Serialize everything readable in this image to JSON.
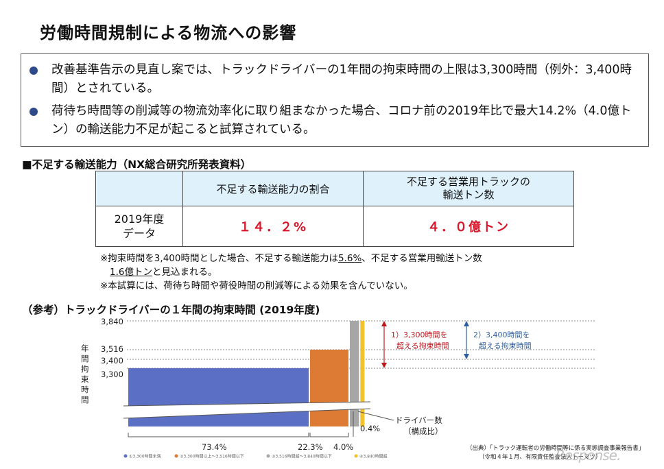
{
  "page_title": "労働時間規制による物流への影響",
  "bullets": [
    "改善基準告示の見直し案では、トラックドライバーの1年間の拘束時間の上限は3,300時間（例外：3,400時間）とされている。",
    "荷待ち時間等の削減等の物流効率化に取り組まなかった場合、コロナ前の2019年比で最大14.2%（4.0億トン）の輸送能力不足が起こると試算されている。"
  ],
  "table_section_title": "■不足する輸送能力（NX総合研究所発表資料）",
  "table": {
    "col1_header": "不足する輸送能力の割合",
    "col2_header_line1": "不足する営業用トラックの",
    "col2_header_line2": "輸送トン数",
    "row_label_line1": "2019年度",
    "row_label_line2": "データ",
    "ratio": "１４．２%",
    "tons": "４．０億トン"
  },
  "notes": {
    "n1_a": "※拘束時間を3,400時間とした場合、不足する輸送能力は",
    "n1_u1": "5.6%",
    "n1_b": "、不足する営業用輸送トン数",
    "n1_u2": "1.6億トン",
    "n1_c": "と見込まれる。",
    "n2": "※本試算には、荷待ち時間や荷役時間の削減等による効果を含んでいない。"
  },
  "chart_section_title": "（参考）トラックドライバーの１年間の拘束時間 (2019年度)",
  "chart_data": {
    "type": "bar",
    "title": "（参考）トラックドライバーの１年間の拘束時間 (2019年度)",
    "ylabel": "年間拘束時間",
    "xlabel": "ドライバー数（構成比）",
    "ytick_labels": [
      "3,840",
      "3,516",
      "3,400",
      "3,300"
    ],
    "yticks": [
      3840,
      3516,
      3400,
      3300
    ],
    "bars": [
      {
        "label": "①3,300時間未満",
        "share": 73.4,
        "hours": 3300,
        "color": "#5b70c4",
        "share_label": "73.4%"
      },
      {
        "label": "②3,300時間以上～3,516時間以下",
        "share": 22.3,
        "hours": 3516,
        "color": "#dd7a33",
        "share_label": "22.3%"
      },
      {
        "label": "③3,516時間超～3,840時間以下",
        "share": 4.0,
        "hours": 3840,
        "color": "#a6a6a6",
        "share_label": "4.0%"
      },
      {
        "label": "④3,840時間超",
        "share": 0.4,
        "hours": 3840,
        "color": "#f2c12e",
        "share_label": "0.4%"
      }
    ],
    "annotations": {
      "a1_line1": "1）3,300時間を",
      "a1_line2": "超える拘束時間",
      "a2_line1": "2）3,400時間を",
      "a2_line2": "超える拘束時間",
      "driver_count": "ドライバー数",
      "composition": "（構成比）"
    },
    "colors": {
      "annotation1": "#c0161c",
      "annotation2": "#2e5f9e"
    }
  },
  "source_line1": "（出典）「トラック運転者の労働時間等に係る実態調査事業報告書」",
  "source_line2": "（令和４年１月、有限責任監査法人トーマツ）",
  "watermark": "Response."
}
